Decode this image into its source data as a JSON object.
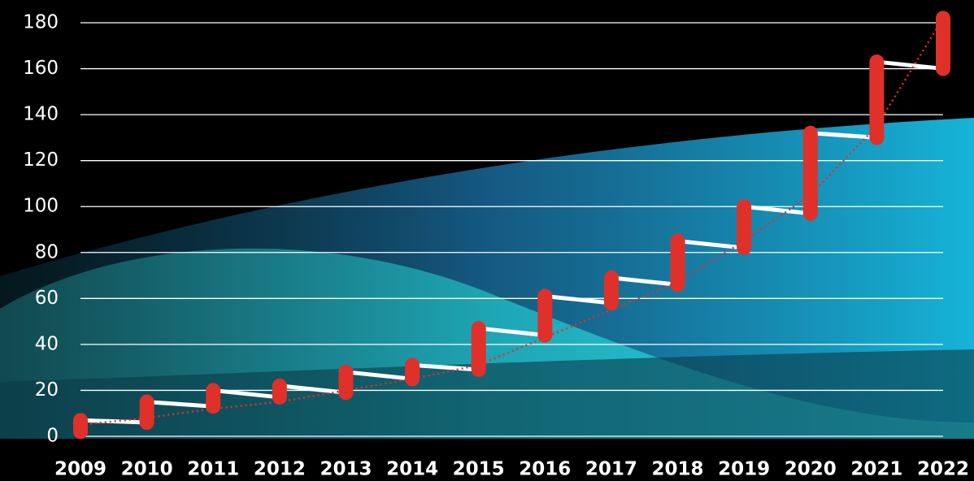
{
  "chart_data": {
    "type": "range",
    "categories": [
      "2009",
      "2010",
      "2011",
      "2012",
      "2013",
      "2014",
      "2015",
      "2016",
      "2017",
      "2018",
      "2019",
      "2020",
      "2021",
      "2022"
    ],
    "low": [
      2,
      6,
      13,
      17,
      19,
      25,
      29,
      44,
      58,
      66,
      82,
      97,
      130,
      160
    ],
    "high": [
      7,
      15,
      20,
      22,
      28,
      31,
      47,
      61,
      69,
      85,
      100,
      132,
      163,
      182
    ],
    "color": "#e0302a",
    "line_color": "#ffffff",
    "trend": {
      "values": [
        5,
        8,
        12,
        15,
        20,
        25,
        31,
        43,
        55,
        67,
        85,
        105,
        135,
        182
      ],
      "color": "#e0302a",
      "dotted": true
    },
    "ylim": [
      0,
      180
    ],
    "yticks": [
      0,
      20,
      40,
      60,
      80,
      100,
      120,
      140,
      160,
      180
    ],
    "grid": true
  }
}
